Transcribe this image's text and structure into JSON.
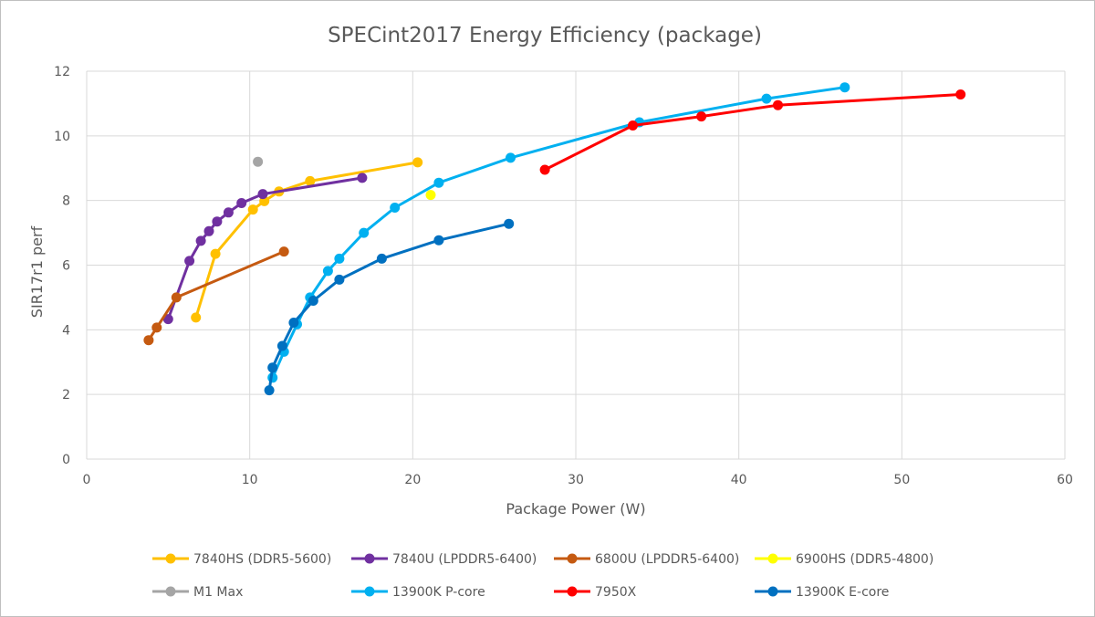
{
  "chart_data": {
    "type": "line",
    "title": "SPECint2017 Energy Efficiency (package)",
    "xlabel": "Package Power (W)",
    "ylabel": "SIR17r1 perf",
    "xlim": [
      0,
      60
    ],
    "ylim": [
      0,
      12
    ],
    "x_ticks": [
      0,
      10,
      20,
      30,
      40,
      50,
      60
    ],
    "y_ticks": [
      0,
      2,
      4,
      6,
      8,
      10,
      12
    ],
    "grid": "vertical and horizontal major gridlines",
    "legend_position": "bottom",
    "series": [
      {
        "name": "7840HS (DDR5-5600)",
        "color": "#FFC000",
        "points": [
          [
            6.7,
            4.38
          ],
          [
            7.9,
            6.35
          ],
          [
            10.2,
            7.72
          ],
          [
            10.9,
            7.98
          ],
          [
            11.8,
            8.28
          ],
          [
            13.7,
            8.6
          ],
          [
            20.3,
            9.18
          ]
        ]
      },
      {
        "name": "7840U (LPDDR5-6400)",
        "color": "#7030A0",
        "points": [
          [
            5.0,
            4.33
          ],
          [
            6.3,
            6.13
          ],
          [
            7.0,
            6.75
          ],
          [
            7.5,
            7.05
          ],
          [
            8.0,
            7.35
          ],
          [
            8.7,
            7.63
          ],
          [
            9.5,
            7.92
          ],
          [
            10.8,
            8.2
          ],
          [
            16.9,
            8.7
          ]
        ]
      },
      {
        "name": "6800U (LPDDR5-6400)",
        "color": "#C55A11",
        "points": [
          [
            3.8,
            3.68
          ],
          [
            4.3,
            4.07
          ],
          [
            5.5,
            5.0
          ],
          [
            12.1,
            6.42
          ]
        ]
      },
      {
        "name": "6900HS (DDR5-4800)",
        "color": "#FFFF00",
        "points": [
          [
            21.1,
            8.17
          ]
        ]
      },
      {
        "name": "M1 Max",
        "color": "#A5A5A5",
        "points": [
          [
            10.5,
            9.2
          ]
        ]
      },
      {
        "name": "13900K P-core",
        "color": "#00B0F0",
        "points": [
          [
            11.4,
            2.52
          ],
          [
            12.1,
            3.32
          ],
          [
            12.9,
            4.17
          ],
          [
            13.7,
            5.0
          ],
          [
            14.8,
            5.82
          ],
          [
            15.5,
            6.2
          ],
          [
            17.0,
            7.0
          ],
          [
            18.9,
            7.78
          ],
          [
            21.6,
            8.55
          ],
          [
            26.0,
            9.32
          ],
          [
            33.9,
            10.42
          ],
          [
            41.7,
            11.15
          ],
          [
            46.5,
            11.5
          ]
        ]
      },
      {
        "name": "7950X",
        "color": "#FF0000",
        "points": [
          [
            28.1,
            8.95
          ],
          [
            33.5,
            10.32
          ],
          [
            37.7,
            10.6
          ],
          [
            42.4,
            10.95
          ],
          [
            53.6,
            11.28
          ]
        ]
      },
      {
        "name": "13900K E-core",
        "color": "#0070C0",
        "points": [
          [
            11.2,
            2.13
          ],
          [
            11.4,
            2.83
          ],
          [
            12.0,
            3.5
          ],
          [
            12.7,
            4.22
          ],
          [
            13.9,
            4.9
          ],
          [
            15.5,
            5.55
          ],
          [
            18.1,
            6.2
          ],
          [
            21.6,
            6.77
          ],
          [
            25.9,
            7.28
          ]
        ]
      }
    ]
  }
}
